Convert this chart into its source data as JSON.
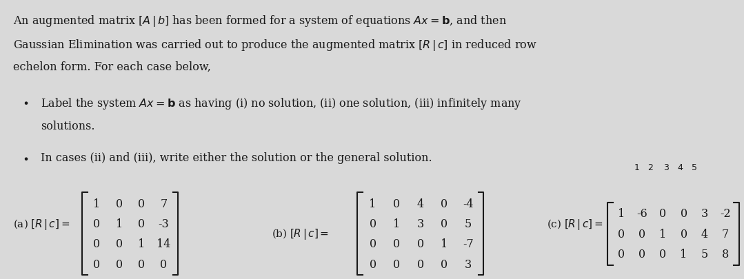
{
  "bg_color": "#d9d9d9",
  "text_color": "#1a1a1a",
  "font_family": "serif",
  "paragraph1": "An augmented matrix $[A\\,|\\,b]$ has been formed for a system of equations $Ax = \\mathbf{b}$, and then\nGaussian Elimination was carried out to produce the augmented matrix $[R\\,|\\,c]$ in reduced row\nechelon form. For each case below,",
  "bullet1": "Label the system $Ax = \\mathbf{b}$ as having (i) no solution, (ii) one solution, (iii) infinitely many\n    solutions.",
  "bullet2": "In cases (ii) and (iii), write either the solution or the general solution.",
  "matrix_a_label": "(a) $[R\\,|\\,c] = $",
  "matrix_a": [
    [
      1,
      0,
      0,
      7
    ],
    [
      0,
      1,
      0,
      -3
    ],
    [
      0,
      0,
      1,
      14
    ],
    [
      0,
      0,
      0,
      0
    ]
  ],
  "matrix_b_label": "(b) $[R\\,|\\,c] = $",
  "matrix_b": [
    [
      1,
      0,
      4,
      0,
      -4
    ],
    [
      0,
      1,
      3,
      0,
      5
    ],
    [
      0,
      0,
      0,
      1,
      -7
    ],
    [
      0,
      0,
      0,
      0,
      3
    ]
  ],
  "matrix_c_label": "(c) $[R\\,|\\,c] = $",
  "matrix_c": [
    [
      1,
      -6,
      0,
      0,
      3,
      -2
    ],
    [
      0,
      0,
      1,
      0,
      4,
      7
    ],
    [
      0,
      0,
      0,
      1,
      5,
      8
    ]
  ],
  "handwritten_note": "$1 \\quad 2 \\quad 3 \\quad 4 \\quad 5$"
}
